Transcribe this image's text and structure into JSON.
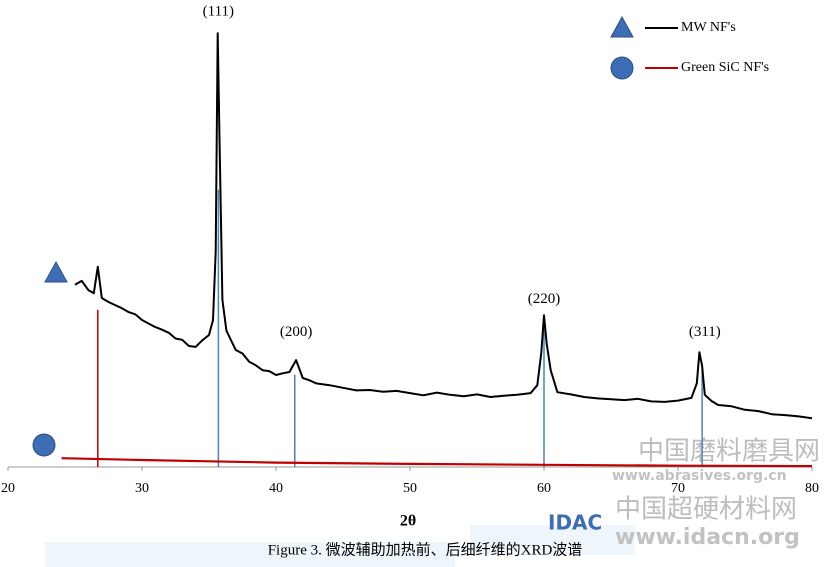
{
  "chart_data": {
    "type": "line",
    "xlabel": "2θ",
    "caption": "Figure 3. 微波辅助加热前、后细纤维的XRD波谱",
    "xlim": [
      20,
      80
    ],
    "xticks": [
      20,
      30,
      40,
      50,
      60,
      70,
      80
    ],
    "ylim": [
      0,
      100
    ],
    "legend": "top-right",
    "series": [
      {
        "name": "MW NF's",
        "color": "#000000",
        "marker": "triangle",
        "marker_color": "#3d6db4",
        "x": [
          25,
          25.5,
          26,
          26.4,
          26.7,
          27,
          27.5,
          28,
          28.5,
          29,
          29.5,
          30,
          30.5,
          31,
          31.5,
          32,
          32.5,
          33,
          33.5,
          34,
          34.5,
          35,
          35.3,
          35.5,
          35.65,
          35.8,
          36,
          36.3,
          36.6,
          37,
          37.5,
          38,
          38.5,
          39,
          39.5,
          40,
          40.5,
          41,
          41.5,
          42,
          42.5,
          43,
          44,
          45,
          46,
          47,
          48,
          49,
          50,
          51,
          52,
          53,
          54,
          55,
          56,
          57,
          58,
          59,
          59.5,
          59.8,
          60,
          60.2,
          60.5,
          61,
          62,
          63,
          64,
          65,
          66,
          67,
          68,
          69,
          70,
          71,
          71.4,
          71.6,
          71.8,
          72,
          72.5,
          73,
          74,
          75,
          76,
          77,
          78,
          79,
          80
        ],
        "values": [
          41.4,
          42.3,
          40.2,
          39.5,
          45.5,
          38.4,
          37.5,
          36.8,
          36.1,
          35.2,
          34.7,
          33.4,
          32.6,
          31.8,
          31.2,
          30.5,
          29.2,
          28.9,
          27.5,
          27.3,
          28.8,
          30,
          33.4,
          49,
          98.6,
          72,
          38,
          31,
          29.1,
          26.6,
          25.8,
          23.9,
          23.1,
          22,
          21.8,
          20.9,
          21.3,
          21.6,
          24.3,
          20.2,
          19.7,
          19,
          18.6,
          18,
          17.4,
          17.5,
          17.1,
          17.3,
          16.8,
          16.3,
          16.9,
          16.4,
          16.1,
          16.5,
          15.9,
          16.2,
          16.4,
          16.8,
          18.6,
          26,
          34.5,
          28,
          22,
          17,
          16.5,
          15.9,
          15.6,
          15.4,
          15.2,
          15.5,
          14.9,
          14.8,
          15.1,
          15.7,
          19,
          26.1,
          23,
          16.4,
          15,
          14.1,
          13.8,
          13,
          12.7,
          12,
          11.8,
          11.5,
          11.1
        ]
      },
      {
        "name": "Green SiC NF's",
        "color": "#c00000",
        "marker": "circle",
        "marker_color": "#3d6db4",
        "x": [
          24,
          30,
          35,
          40,
          50,
          60,
          70,
          80
        ],
        "values": [
          2,
          1.6,
          1.3,
          1,
          0.7,
          0.5,
          0.3,
          0.2
        ]
      }
    ],
    "reference_lines": [
      {
        "color": "#c00000",
        "x": [
          26.7
        ],
        "values": [
          35.7
        ]
      },
      {
        "color": "#4f81bd",
        "x": [
          35.7,
          41.4,
          60,
          71.8
        ],
        "values": [
          63,
          21,
          34,
          22
        ]
      }
    ],
    "annotations": [
      {
        "text": "(111)",
        "x": 35.7,
        "y": 103.4
      },
      {
        "text": "(200)",
        "x": 41.5,
        "y": 30.5
      },
      {
        "text": "(220)",
        "x": 60,
        "y": 38
      },
      {
        "text": "(311)",
        "x": 72,
        "y": 30.5
      }
    ]
  },
  "watermarks": {
    "site1": "中国磨料磨具网",
    "url1": "www.abrasives.org.cn",
    "logo": "IDAC",
    "site2": "中国超硬材料网",
    "url2": "www.idacn.org"
  }
}
